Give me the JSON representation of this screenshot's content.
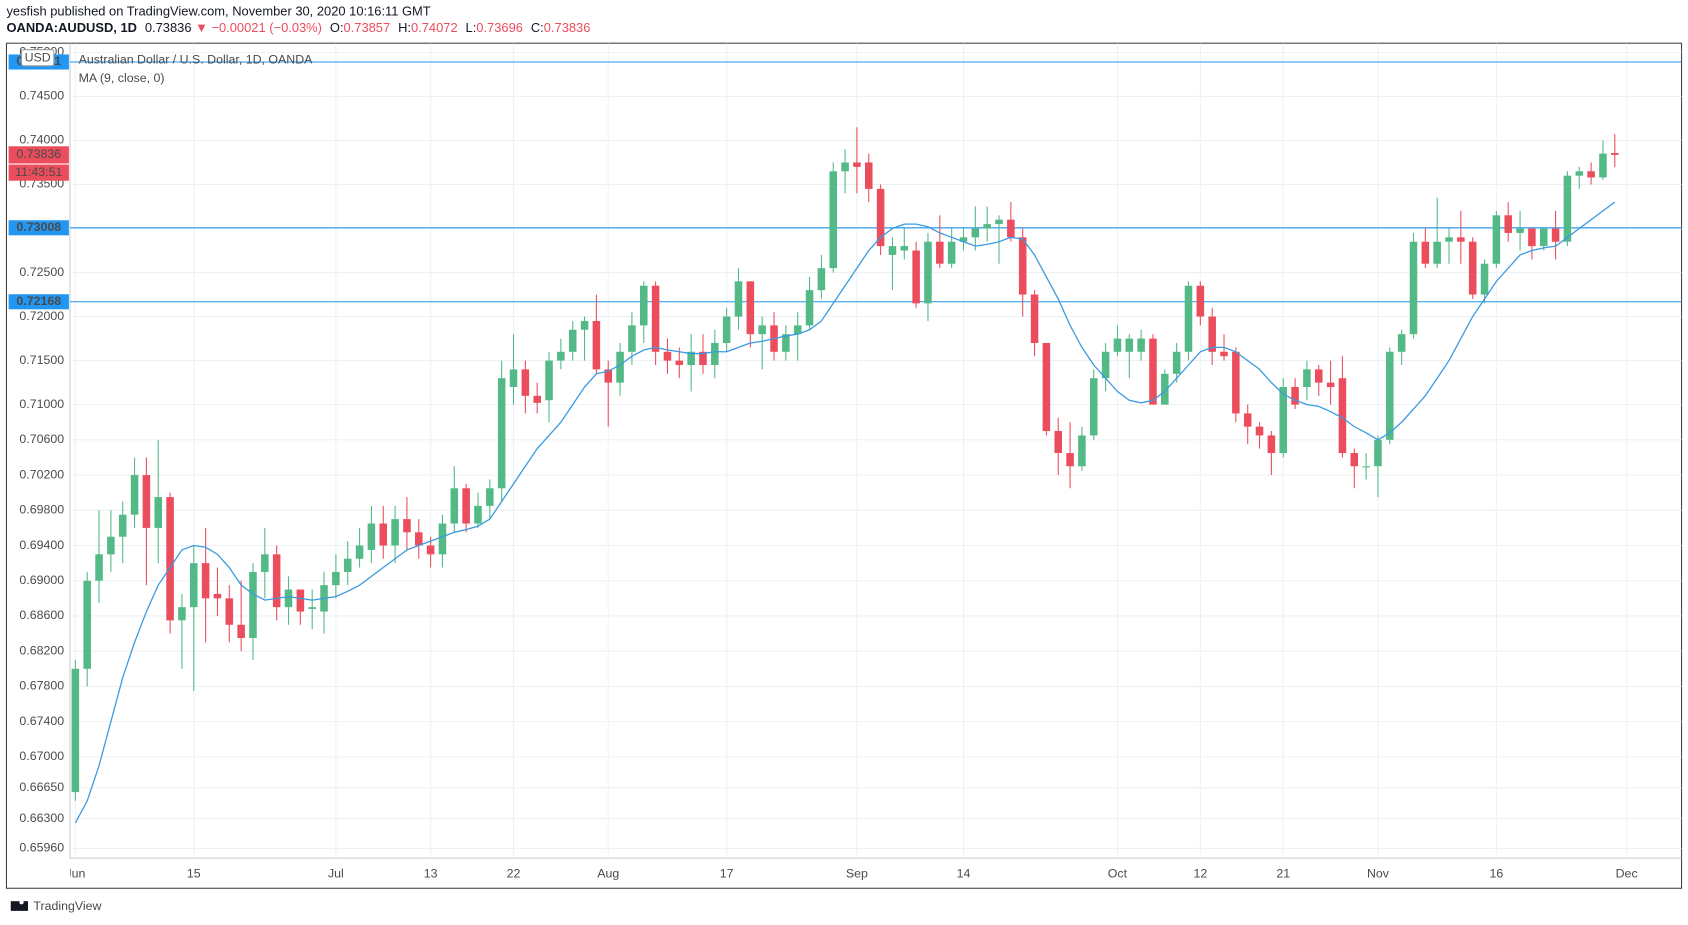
{
  "chart_data": {
    "type": "candlestick",
    "published": "yesfish published on TradingView.com, November 30, 2020 10:16:11 GMT",
    "symbol": "OANDA:AUDUSD, 1D",
    "change": "▼ −0.00021 (−0.03%)",
    "ohlc": [
      {
        "label": "O:",
        "value": 0.73857
      },
      {
        "label": "H:",
        "value": 0.74072
      },
      {
        "label": "L:",
        "value": 0.73696
      },
      {
        "label": "C:",
        "value": 0.73836
      }
    ],
    "title": "Australian Dollar / U.S. Dollar, 1D, OANDA",
    "indicator": "MA (9, close, 0)",
    "currency": "USD",
    "countdown": "11:43:51",
    "brand": "TradingView",
    "up_color": "#53b987",
    "down_color": "#eb4d5c",
    "ma_color": "#3a9ae0",
    "line_color": "#2196f3",
    "grid": true,
    "ylim": [
      0.6585,
      0.7508
    ],
    "yticks": [
      {
        "value": 0.6596,
        "label": "0.65960"
      },
      {
        "value": 0.663,
        "label": "0.66300"
      },
      {
        "value": 0.6665,
        "label": "0.66650"
      },
      {
        "value": 0.67,
        "label": "0.67000"
      },
      {
        "value": 0.674,
        "label": "0.67400"
      },
      {
        "value": 0.678,
        "label": "0.67800"
      },
      {
        "value": 0.682,
        "label": "0.68200"
      },
      {
        "value": 0.686,
        "label": "0.68600"
      },
      {
        "value": 0.69,
        "label": "0.69000"
      },
      {
        "value": 0.694,
        "label": "0.69400"
      },
      {
        "value": 0.698,
        "label": "0.69800"
      },
      {
        "value": 0.702,
        "label": "0.70200"
      },
      {
        "value": 0.706,
        "label": "0.70600"
      },
      {
        "value": 0.71,
        "label": "0.71000"
      },
      {
        "value": 0.715,
        "label": "0.71500"
      },
      {
        "value": 0.72,
        "label": "0.72000"
      },
      {
        "value": 0.725,
        "label": "0.72500"
      },
      {
        "value": 0.73,
        "label": "0.73000"
      },
      {
        "value": 0.735,
        "label": "0.73500"
      },
      {
        "value": 0.74,
        "label": "0.74000"
      },
      {
        "value": 0.745,
        "label": "0.74500"
      },
      {
        "value": 0.75,
        "label": "0.75000"
      }
    ],
    "xticks": [
      {
        "value": 0,
        "label": "Jun"
      },
      {
        "value": 10,
        "label": "15"
      },
      {
        "value": 22,
        "label": "Jul"
      },
      {
        "value": 30,
        "label": "13"
      },
      {
        "value": 37,
        "label": "22"
      },
      {
        "value": 45,
        "label": "Aug"
      },
      {
        "value": 55,
        "label": "17"
      },
      {
        "value": 66,
        "label": "Sep"
      },
      {
        "value": 75,
        "label": "14"
      },
      {
        "value": 88,
        "label": "Oct"
      },
      {
        "value": 95,
        "label": "12"
      },
      {
        "value": 102,
        "label": "21"
      },
      {
        "value": 110,
        "label": "Nov"
      },
      {
        "value": 120,
        "label": "16"
      },
      {
        "value": 131,
        "label": "Dec"
      }
    ],
    "hlines": [
      0.74891,
      0.73008,
      0.72168
    ],
    "open": [
      0.666,
      0.68,
      0.69,
      0.693,
      0.695,
      0.6975,
      0.702,
      0.696,
      0.6995,
      0.6855,
      0.687,
      0.692,
      0.6885,
      0.688,
      0.685,
      0.6835,
      0.691,
      0.693,
      0.687,
      0.689,
      0.6868,
      0.6865,
      0.6895,
      0.691,
      0.6925,
      0.6935,
      0.6965,
      0.694,
      0.697,
      0.6955,
      0.694,
      0.693,
      0.6965,
      0.7005,
      0.6965,
      0.6985,
      0.7005,
      0.712,
      0.714,
      0.711,
      0.7105,
      0.715,
      0.716,
      0.7185,
      0.7195,
      0.714,
      0.7125,
      0.716,
      0.719,
      0.7235,
      0.716,
      0.715,
      0.7145,
      0.716,
      0.7145,
      0.717,
      0.72,
      0.724,
      0.718,
      0.719,
      0.716,
      0.718,
      0.719,
      0.723,
      0.7255,
      0.7365,
      0.7375,
      0.7375,
      0.7345,
      0.727,
      0.7275,
      0.7275,
      0.7215,
      0.7285,
      0.726,
      0.7285,
      0.729,
      0.73,
      0.7305,
      0.731,
      0.729,
      0.7225,
      0.717,
      0.707,
      0.7045,
      0.703,
      0.7065,
      0.713,
      0.716,
      0.716,
      0.716,
      0.7175,
      0.71,
      0.7135,
      0.716,
      0.7235,
      0.72,
      0.716,
      0.716,
      0.709,
      0.7075,
      0.7065,
      0.7045,
      0.712,
      0.712,
      0.714,
      0.7125,
      0.713,
      0.7045,
      0.703,
      0.703,
      0.706,
      0.716,
      0.718,
      0.7285,
      0.726,
      0.7285,
      0.729,
      0.7285,
      0.7225,
      0.726,
      0.7315,
      0.7295,
      0.73,
      0.728,
      0.73,
      0.7285,
      0.736,
      0.7365,
      0.7358,
      0.73857
    ],
    "high": [
      0.681,
      0.691,
      0.698,
      0.698,
      0.699,
      0.704,
      0.704,
      0.706,
      0.7,
      0.6885,
      0.694,
      0.696,
      0.6915,
      0.6895,
      0.69,
      0.692,
      0.696,
      0.694,
      0.6905,
      0.689,
      0.689,
      0.691,
      0.693,
      0.6945,
      0.696,
      0.6985,
      0.6985,
      0.6985,
      0.6995,
      0.697,
      0.695,
      0.6975,
      0.703,
      0.701,
      0.7,
      0.7015,
      0.715,
      0.718,
      0.715,
      0.7125,
      0.716,
      0.7175,
      0.7195,
      0.72,
      0.7225,
      0.715,
      0.717,
      0.7205,
      0.724,
      0.724,
      0.7175,
      0.7165,
      0.718,
      0.718,
      0.7185,
      0.721,
      0.7255,
      0.724,
      0.72,
      0.7205,
      0.719,
      0.7205,
      0.7245,
      0.727,
      0.7375,
      0.739,
      0.7415,
      0.7385,
      0.735,
      0.729,
      0.73,
      0.7285,
      0.7295,
      0.7315,
      0.73,
      0.73,
      0.7325,
      0.7325,
      0.7315,
      0.733,
      0.73,
      0.723,
      0.717,
      0.7085,
      0.708,
      0.7075,
      0.714,
      0.717,
      0.719,
      0.718,
      0.7185,
      0.718,
      0.714,
      0.717,
      0.724,
      0.724,
      0.721,
      0.718,
      0.7165,
      0.71,
      0.708,
      0.707,
      0.713,
      0.713,
      0.715,
      0.7145,
      0.715,
      0.7155,
      0.705,
      0.7045,
      0.7065,
      0.7165,
      0.7185,
      0.7295,
      0.73,
      0.7335,
      0.73,
      0.732,
      0.729,
      0.7265,
      0.732,
      0.733,
      0.732,
      0.73,
      0.73,
      0.732,
      0.7365,
      0.737,
      0.7375,
      0.74,
      0.74072
    ],
    "low": [
      0.665,
      0.678,
      0.6875,
      0.691,
      0.692,
      0.696,
      0.6895,
      0.692,
      0.684,
      0.68,
      0.6775,
      0.683,
      0.686,
      0.683,
      0.682,
      0.681,
      0.688,
      0.6855,
      0.685,
      0.685,
      0.6845,
      0.684,
      0.688,
      0.6895,
      0.6915,
      0.692,
      0.6925,
      0.692,
      0.6935,
      0.6925,
      0.6915,
      0.6915,
      0.6955,
      0.6955,
      0.696,
      0.697,
      0.699,
      0.71,
      0.709,
      0.709,
      0.708,
      0.714,
      0.715,
      0.715,
      0.7135,
      0.7075,
      0.711,
      0.7145,
      0.717,
      0.7145,
      0.7135,
      0.713,
      0.7115,
      0.7135,
      0.713,
      0.716,
      0.7185,
      0.7165,
      0.714,
      0.715,
      0.715,
      0.715,
      0.7185,
      0.722,
      0.725,
      0.734,
      0.734,
      0.733,
      0.727,
      0.723,
      0.7265,
      0.721,
      0.7195,
      0.7255,
      0.7255,
      0.7275,
      0.7275,
      0.7285,
      0.726,
      0.7285,
      0.72,
      0.7155,
      0.7065,
      0.702,
      0.7005,
      0.7025,
      0.706,
      0.7115,
      0.7155,
      0.713,
      0.715,
      0.71,
      0.71,
      0.7125,
      0.715,
      0.719,
      0.7145,
      0.715,
      0.708,
      0.7055,
      0.705,
      0.702,
      0.704,
      0.7095,
      0.7105,
      0.711,
      0.71,
      0.704,
      0.7005,
      0.7015,
      0.6995,
      0.7055,
      0.7145,
      0.7175,
      0.7255,
      0.7255,
      0.726,
      0.726,
      0.722,
      0.7215,
      0.7255,
      0.7285,
      0.7275,
      0.7265,
      0.7275,
      0.7265,
      0.728,
      0.7345,
      0.735,
      0.7355,
      0.73696
    ],
    "close": [
      0.68,
      0.69,
      0.693,
      0.695,
      0.6975,
      0.702,
      0.696,
      0.6995,
      0.6855,
      0.687,
      0.692,
      0.688,
      0.688,
      0.685,
      0.6835,
      0.691,
      0.693,
      0.687,
      0.689,
      0.6865,
      0.687,
      0.6895,
      0.691,
      0.6925,
      0.694,
      0.6965,
      0.694,
      0.697,
      0.6955,
      0.694,
      0.693,
      0.6965,
      0.7005,
      0.6965,
      0.6985,
      0.7005,
      0.713,
      0.714,
      0.711,
      0.7102,
      0.715,
      0.716,
      0.7185,
      0.7195,
      0.714,
      0.7125,
      0.716,
      0.719,
      0.7235,
      0.716,
      0.715,
      0.7145,
      0.716,
      0.7145,
      0.717,
      0.72,
      0.724,
      0.718,
      0.719,
      0.716,
      0.718,
      0.719,
      0.723,
      0.7255,
      0.7365,
      0.7375,
      0.737,
      0.7345,
      0.728,
      0.728,
      0.728,
      0.7215,
      0.7285,
      0.726,
      0.7285,
      0.729,
      0.73,
      0.7305,
      0.731,
      0.729,
      0.7225,
      0.717,
      0.707,
      0.7045,
      0.703,
      0.7065,
      0.713,
      0.716,
      0.7175,
      0.7175,
      0.7175,
      0.71,
      0.7135,
      0.716,
      0.7235,
      0.72,
      0.716,
      0.7155,
      0.709,
      0.7075,
      0.7065,
      0.7045,
      0.712,
      0.71,
      0.714,
      0.7125,
      0.712,
      0.7045,
      0.703,
      0.703,
      0.706,
      0.716,
      0.718,
      0.7285,
      0.726,
      0.7285,
      0.729,
      0.7285,
      0.7225,
      0.726,
      0.7315,
      0.7295,
      0.73,
      0.728,
      0.73,
      0.7285,
      0.736,
      0.7365,
      0.7358,
      0.7385,
      0.73836
    ],
    "ma": [
      0.6625,
      0.665,
      0.669,
      0.674,
      0.679,
      0.683,
      0.6865,
      0.6895,
      0.6915,
      0.6935,
      0.694,
      0.6938,
      0.693,
      0.6915,
      0.6895,
      0.6885,
      0.6878,
      0.688,
      0.6882,
      0.688,
      0.6878,
      0.688,
      0.6882,
      0.6888,
      0.6895,
      0.6905,
      0.6915,
      0.6925,
      0.6935,
      0.694,
      0.6945,
      0.695,
      0.6955,
      0.6958,
      0.6962,
      0.697,
      0.699,
      0.701,
      0.703,
      0.705,
      0.7065,
      0.708,
      0.71,
      0.712,
      0.7135,
      0.7138,
      0.7145,
      0.7155,
      0.7162,
      0.7165,
      0.7162,
      0.716,
      0.7158,
      0.7158,
      0.716,
      0.716,
      0.7165,
      0.717,
      0.7172,
      0.7175,
      0.7178,
      0.718,
      0.7185,
      0.7195,
      0.7215,
      0.7235,
      0.7255,
      0.7275,
      0.729,
      0.73,
      0.7305,
      0.7305,
      0.7302,
      0.7295,
      0.729,
      0.7285,
      0.728,
      0.7282,
      0.7285,
      0.729,
      0.7288,
      0.727,
      0.7245,
      0.722,
      0.719,
      0.7165,
      0.7145,
      0.713,
      0.7115,
      0.7105,
      0.7102,
      0.7105,
      0.7115,
      0.713,
      0.7145,
      0.716,
      0.7165,
      0.7165,
      0.716,
      0.715,
      0.714,
      0.7125,
      0.7112,
      0.7105,
      0.71,
      0.7098,
      0.7092,
      0.7085,
      0.7075,
      0.7068,
      0.706,
      0.7068,
      0.708,
      0.7095,
      0.711,
      0.713,
      0.715,
      0.7175,
      0.72,
      0.722,
      0.724,
      0.7255,
      0.727,
      0.7275,
      0.7278,
      0.728,
      0.729,
      0.73,
      0.731,
      0.732,
      0.733
    ]
  }
}
